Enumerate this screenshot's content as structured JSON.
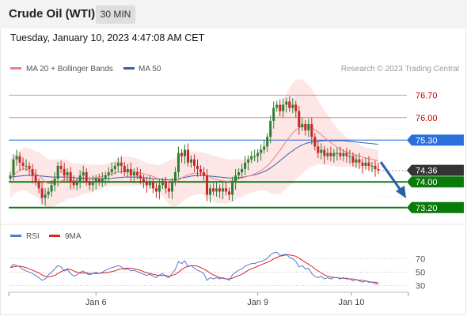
{
  "header": {
    "title": "Crude Oil (WTI)",
    "timeframe": "30 MIN",
    "datetime": "Tuesday, January 10, 2023 4:47:08 AM CET"
  },
  "legend": {
    "ma20": "MA 20 + Bollinger Bands",
    "ma50": "MA 50",
    "credit": "Research © 2023 Trading Central",
    "rsi": "RSI",
    "rsi_ma": "9MA"
  },
  "colors": {
    "ma20": "#f08080",
    "bollinger_fill": "#fde2e2",
    "ma50": "#3b5fa0",
    "up_candle": "#2e7d32",
    "down_candle": "#c62828",
    "resistance": "#e06060",
    "pivot": "#2a6fdb",
    "support": "#0a7a0a",
    "current": "#333333",
    "arrow": "#2a5faa",
    "rsi": "#5577cc",
    "rsi_ma": "#dd2222"
  },
  "chart_data": [
    {
      "type": "candlestick",
      "title": "Crude Oil (WTI)",
      "ylim": [
        72.9,
        77.2
      ],
      "x_ticks": [
        "Jan 6",
        "Jan 9",
        "Jan 10"
      ],
      "levels": [
        {
          "value": 76.7,
          "label": "76.70",
          "kind": "resistance"
        },
        {
          "value": 76.0,
          "label": "76.00",
          "kind": "resistance"
        },
        {
          "value": 75.3,
          "label": "75.30",
          "kind": "pivot"
        },
        {
          "value": 74.36,
          "label": "74.36",
          "kind": "current"
        },
        {
          "value": 74.0,
          "label": "74.00",
          "kind": "support"
        },
        {
          "value": 73.2,
          "label": "73.20",
          "kind": "support"
        }
      ],
      "closes": [
        74.2,
        74.7,
        74.8,
        74.6,
        74.5,
        74.5,
        74.4,
        74.2,
        74.0,
        73.8,
        73.5,
        73.6,
        73.7,
        73.9,
        74.1,
        74.5,
        74.4,
        74.2,
        74.3,
        74.0,
        73.9,
        74.0,
        74.2,
        74.3,
        74.0,
        73.9,
        74.0,
        74.1,
        74.0,
        74.1,
        74.2,
        74.3,
        74.4,
        74.5,
        74.6,
        74.5,
        74.3,
        74.4,
        74.2,
        74.3,
        74.2,
        74.1,
        74.0,
        73.9,
        74.0,
        73.8,
        73.7,
        73.9,
        74.0,
        73.8,
        73.7,
        74.0,
        74.3,
        74.9,
        74.8,
        75.0,
        74.6,
        74.7,
        74.5,
        74.4,
        74.3,
        74.2,
        73.6,
        73.8,
        73.7,
        73.8,
        73.7,
        73.8,
        73.7,
        73.6,
        74.0,
        74.2,
        74.3,
        74.4,
        74.6,
        74.7,
        74.8,
        74.8,
        74.9,
        75.0,
        75.1,
        75.4,
        75.9,
        76.3,
        76.4,
        76.2,
        76.4,
        76.5,
        76.3,
        76.4,
        76.2,
        75.7,
        75.8,
        75.6,
        75.8,
        75.4,
        75.1,
        74.9,
        75.0,
        74.8,
        74.9,
        74.8,
        74.9,
        74.9,
        74.8,
        74.9,
        74.8,
        74.8,
        74.6,
        74.7,
        74.6,
        74.5,
        74.6,
        74.5,
        74.5,
        74.4,
        74.36
      ],
      "ma20": [
        74.1,
        74.2,
        74.3,
        74.35,
        74.4,
        74.4,
        74.35,
        74.3,
        74.25,
        74.2,
        74.1,
        74.0,
        73.95,
        73.95,
        73.97,
        74.0,
        74.03,
        74.05,
        74.08,
        74.05,
        74.05,
        74.05,
        74.07,
        74.1,
        74.1,
        74.1,
        74.12,
        74.14,
        74.15,
        74.17,
        74.2,
        74.22,
        74.25,
        74.27,
        74.3,
        74.32,
        74.33,
        74.33,
        74.33,
        74.32,
        74.3,
        74.28,
        74.25,
        74.22,
        74.2,
        74.17,
        74.12,
        74.08,
        74.05,
        74.02,
        73.98,
        73.96,
        73.98,
        74.05,
        74.12,
        74.18,
        74.22,
        74.25,
        74.27,
        74.27,
        74.27,
        74.25,
        74.2,
        74.15,
        74.1,
        74.07,
        74.05,
        74.03,
        74.02,
        74.02,
        74.04,
        74.07,
        74.1,
        74.12,
        74.15,
        74.18,
        74.2,
        74.25,
        74.3,
        74.35,
        74.42,
        74.5,
        74.6,
        74.72,
        74.85,
        74.98,
        75.12,
        75.27,
        75.4,
        75.52,
        75.62,
        75.68,
        75.72,
        75.73,
        75.72,
        75.68,
        75.62,
        75.55,
        75.47,
        75.38,
        75.3,
        75.22,
        75.15,
        75.08,
        75.02,
        74.97,
        74.93,
        74.89,
        74.86,
        74.83,
        74.8,
        74.77,
        74.74,
        74.72,
        74.7,
        74.68,
        74.66
      ],
      "bb_width": [
        0.6,
        0.6,
        0.62,
        0.64,
        0.66,
        0.68,
        0.7,
        0.7,
        0.7,
        0.72,
        0.75,
        0.76,
        0.76,
        0.74,
        0.72,
        0.7,
        0.68,
        0.66,
        0.6,
        0.56,
        0.54,
        0.52,
        0.5,
        0.48,
        0.46,
        0.44,
        0.42,
        0.4,
        0.38,
        0.37,
        0.36,
        0.36,
        0.38,
        0.4,
        0.42,
        0.44,
        0.46,
        0.46,
        0.45,
        0.44,
        0.42,
        0.4,
        0.38,
        0.37,
        0.37,
        0.38,
        0.4,
        0.45,
        0.5,
        0.6,
        0.68,
        0.72,
        0.74,
        0.76,
        0.76,
        0.74,
        0.72,
        0.7,
        0.68,
        0.66,
        0.66,
        0.66,
        0.68,
        0.7,
        0.72,
        0.72,
        0.72,
        0.7,
        0.7,
        0.68,
        0.66,
        0.64,
        0.6,
        0.58,
        0.56,
        0.55,
        0.55,
        0.56,
        0.58,
        0.62,
        0.68,
        0.8,
        0.95,
        1.1,
        1.25,
        1.35,
        1.42,
        1.48,
        1.52,
        1.55,
        1.55,
        1.52,
        1.45,
        1.38,
        1.3,
        1.2,
        1.1,
        1.0,
        0.92,
        0.85,
        0.78,
        0.72,
        0.66,
        0.6,
        0.55,
        0.5,
        0.46,
        0.42,
        0.4,
        0.38,
        0.36,
        0.35,
        0.34,
        0.33,
        0.33,
        0.33,
        0.33
      ],
      "ma50": [
        74.15,
        74.16,
        74.17,
        74.18,
        74.19,
        74.2,
        74.2,
        74.2,
        74.2,
        74.19,
        74.18,
        74.17,
        74.16,
        74.15,
        74.15,
        74.15,
        74.15,
        74.15,
        74.15,
        74.14,
        74.13,
        74.12,
        74.12,
        74.12,
        74.11,
        74.1,
        74.1,
        74.1,
        74.1,
        74.1,
        74.1,
        74.1,
        74.11,
        74.12,
        74.13,
        74.14,
        74.15,
        74.15,
        74.15,
        74.15,
        74.15,
        74.14,
        74.13,
        74.12,
        74.11,
        74.1,
        74.09,
        74.08,
        74.08,
        74.07,
        74.06,
        74.06,
        74.07,
        74.1,
        74.12,
        74.14,
        74.16,
        74.18,
        74.19,
        74.2,
        74.2,
        74.2,
        74.19,
        74.18,
        74.17,
        74.16,
        74.15,
        74.14,
        74.13,
        74.12,
        74.12,
        74.12,
        74.13,
        74.14,
        74.16,
        74.18,
        74.2,
        74.22,
        74.25,
        74.28,
        74.32,
        74.37,
        74.43,
        74.5,
        74.58,
        74.66,
        74.74,
        74.82,
        74.9,
        74.97,
        75.04,
        75.1,
        75.15,
        75.19,
        75.22,
        75.24,
        75.25,
        75.26,
        75.27,
        75.28,
        75.28,
        75.28,
        75.28,
        75.28,
        75.28,
        75.28,
        75.27,
        75.26,
        75.25,
        75.24,
        75.23,
        75.22,
        75.21,
        75.2,
        75.19,
        75.18,
        75.17
      ]
    },
    {
      "type": "line",
      "title": "RSI",
      "ylim": [
        20,
        85
      ],
      "y_ticks": [
        70,
        50,
        30
      ],
      "series": [
        {
          "name": "RSI",
          "values": [
            57,
            62,
            60,
            58,
            54,
            52,
            50,
            48,
            45,
            42,
            38,
            40,
            46,
            50,
            55,
            60,
            58,
            52,
            54,
            48,
            44,
            46,
            50,
            52,
            48,
            46,
            48,
            50,
            48,
            50,
            53,
            55,
            57,
            58,
            60,
            58,
            54,
            55,
            52,
            53,
            51,
            49,
            47,
            45,
            47,
            44,
            42,
            46,
            48,
            44,
            42,
            48,
            54,
            66,
            63,
            67,
            58,
            60,
            56,
            53,
            51,
            48,
            38,
            42,
            40,
            42,
            40,
            42,
            40,
            38,
            46,
            50,
            53,
            55,
            59,
            61,
            63,
            63,
            65,
            66,
            68,
            71,
            76,
            79,
            80,
            75,
            76,
            77,
            72,
            70,
            66,
            58,
            60,
            55,
            56,
            48,
            44,
            42,
            44,
            40,
            42,
            40,
            42,
            42,
            40,
            42,
            40,
            40,
            37,
            39,
            37,
            35,
            37,
            35,
            35,
            33,
            32
          ]
        },
        {
          "name": "9MA",
          "values": [
            57,
            58,
            59,
            59,
            58,
            57,
            55,
            53,
            51,
            49,
            46,
            44,
            43,
            44,
            45,
            48,
            51,
            53,
            55,
            54,
            52,
            50,
            49,
            49,
            49,
            48,
            48,
            48,
            48,
            49,
            49,
            50,
            51,
            52,
            54,
            55,
            56,
            56,
            56,
            55,
            54,
            53,
            51,
            49,
            48,
            47,
            46,
            45,
            45,
            45,
            44,
            45,
            47,
            50,
            54,
            57,
            59,
            60,
            60,
            59,
            57,
            55,
            52,
            49,
            46,
            44,
            42,
            41,
            40,
            40,
            41,
            43,
            45,
            47,
            50,
            53,
            55,
            57,
            59,
            61,
            63,
            65,
            67,
            70,
            72,
            74,
            75,
            76,
            76,
            75,
            74,
            71,
            68,
            65,
            62,
            59,
            55,
            52,
            49,
            46,
            44,
            43,
            42,
            42,
            41,
            41,
            41,
            40,
            40,
            39,
            38,
            38,
            37,
            36,
            35,
            35,
            34
          ]
        }
      ]
    }
  ]
}
